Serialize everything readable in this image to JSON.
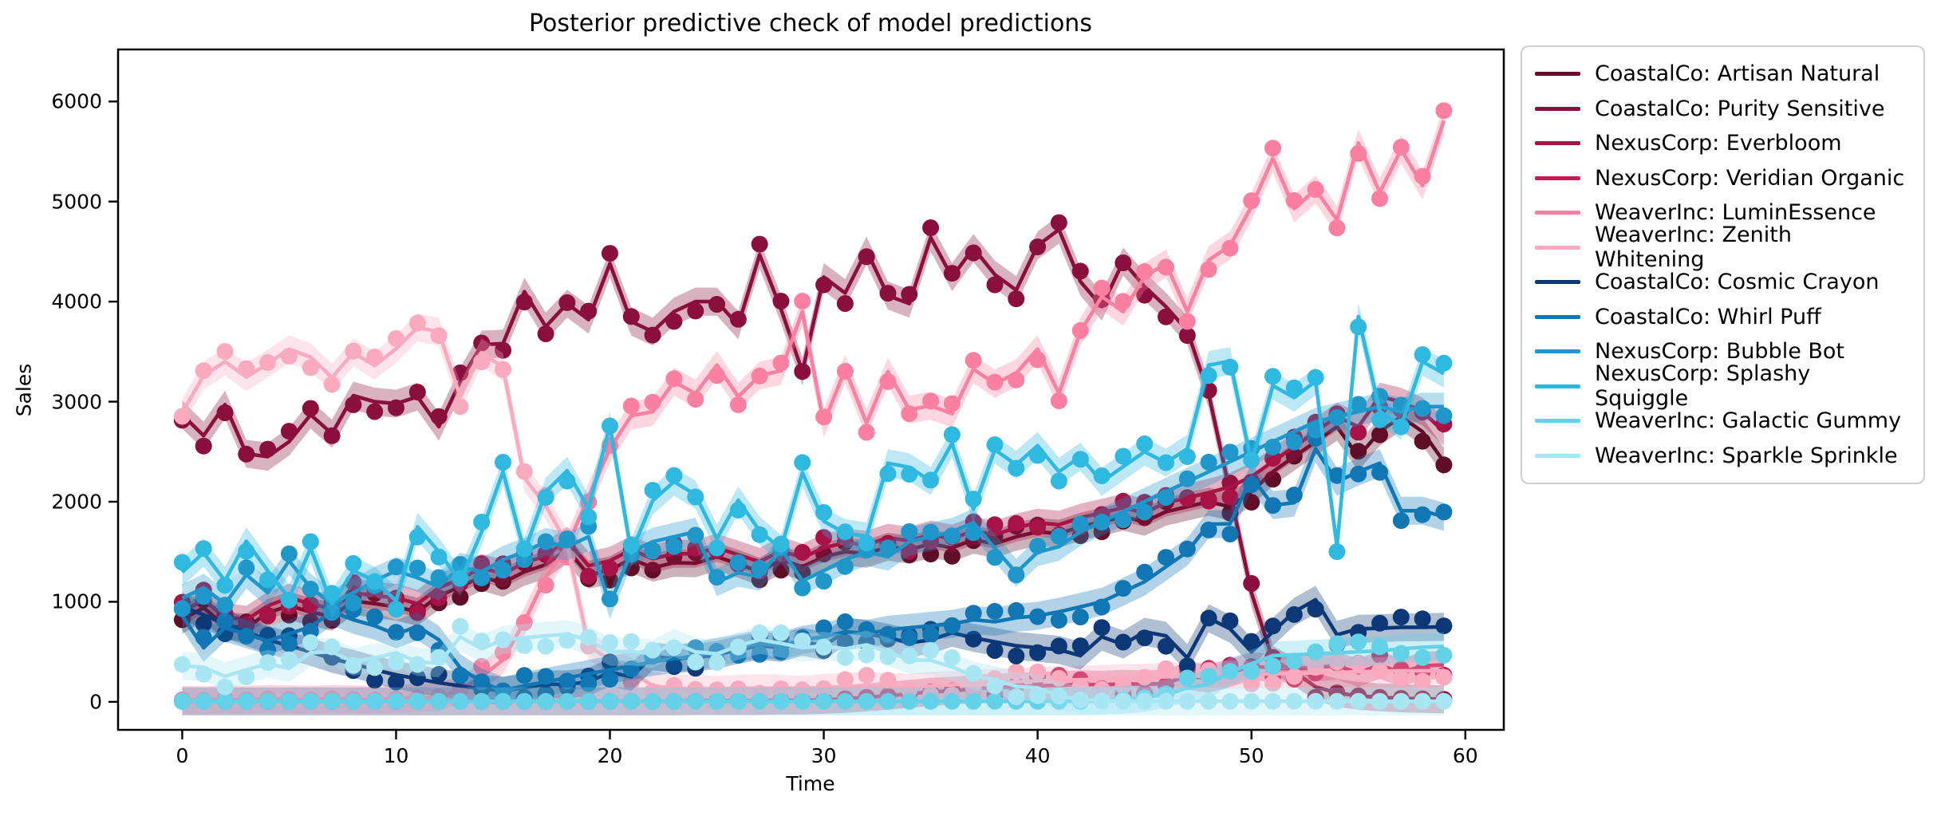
{
  "title": "Posterior predictive check of model predictions",
  "xlabel": "Time",
  "ylabel": "Sales",
  "axes": {
    "xticks": [
      0,
      10,
      20,
      30,
      40,
      50,
      60
    ],
    "yticks": [
      0,
      1000,
      2000,
      3000,
      4000,
      5000,
      6000
    ],
    "xlim": [
      -3,
      61.8
    ],
    "ylim": [
      -280,
      6520
    ],
    "grid": false,
    "spine_color": "#000000"
  },
  "legend": {
    "position": "outside-upper-right",
    "items": [
      {
        "label": "CoastalCo: Artisan Natural",
        "color": "#600e28"
      },
      {
        "label": "CoastalCo: Purity Sensitive",
        "color": "#8a0f3c"
      },
      {
        "label": "NexusCorp: Everbloom",
        "color": "#a81347"
      },
      {
        "label": "NexusCorp: Veridian Organic",
        "color": "#c41a55"
      },
      {
        "label": "WeaverInc: LuminEssence",
        "color": "#fa7fa0"
      },
      {
        "label": "WeaverInc: Zenith Whitening",
        "color": "#f9aabf"
      },
      {
        "label": "CoastalCo: Cosmic Crayon",
        "color": "#0c3877"
      },
      {
        "label": "CoastalCo: Whirl Puff",
        "color": "#1176b4"
      },
      {
        "label": "NexusCorp: Bubble Bot",
        "color": "#1f97cb"
      },
      {
        "label": "NexusCorp: Splashy Squiggle",
        "color": "#2fb9e0"
      },
      {
        "label": "WeaverInc: Galactic Gummy",
        "color": "#63d1e8"
      },
      {
        "label": "WeaverInc: Sparkle Sprinkle",
        "color": "#a9e6f3"
      }
    ]
  },
  "chart_data": {
    "type": "line",
    "title": "Posterior predictive check of model predictions",
    "xlabel": "Time",
    "ylabel": "Sales",
    "marker": "circle",
    "band_halfwidth": 140,
    "band_opacity": 0.32,
    "x": [
      0,
      1,
      2,
      3,
      4,
      5,
      6,
      7,
      8,
      9,
      10,
      11,
      12,
      13,
      14,
      15,
      16,
      17,
      18,
      19,
      20,
      21,
      22,
      23,
      24,
      25,
      26,
      27,
      28,
      29,
      30,
      31,
      32,
      33,
      34,
      35,
      36,
      37,
      38,
      39,
      40,
      41,
      42,
      43,
      44,
      45,
      46,
      47,
      48,
      49,
      50,
      51,
      52,
      53,
      54,
      55,
      56,
      57,
      58,
      59
    ],
    "series": [
      {
        "name": "CoastalCo: Artisan Natural",
        "color": "#600e28",
        "values": [
          820,
          940,
          760,
          740,
          890,
          960,
          900,
          850,
          1010,
          980,
          950,
          900,
          1060,
          1150,
          1250,
          1190,
          1300,
          1370,
          1525,
          1270,
          1315,
          1430,
          1340,
          1390,
          1385,
          1450,
          1380,
          1300,
          1420,
          1350,
          1450,
          1500,
          1480,
          1550,
          1520,
          1580,
          1540,
          1620,
          1580,
          1650,
          1700,
          1680,
          1750,
          1800,
          1850,
          1800,
          1900,
          1950,
          2000,
          1950,
          2100,
          2300,
          2450,
          2600,
          2750,
          2450,
          2700,
          2850,
          2700,
          2400
        ]
      },
      {
        "name": "CoastalCo: Purity Sensitive",
        "color": "#8a0f3c",
        "values": [
          2870,
          2660,
          2970,
          2480,
          2450,
          2600,
          2870,
          2680,
          3060,
          3000,
          2980,
          3050,
          2750,
          3200,
          3570,
          3580,
          4100,
          3750,
          3980,
          3820,
          4380,
          3800,
          3700,
          3900,
          4000,
          4000,
          3765,
          4470,
          3925,
          3300,
          4245,
          4085,
          4510,
          4060,
          3980,
          4640,
          4245,
          4535,
          4270,
          4115,
          4560,
          4720,
          4200,
          3950,
          4400,
          4150,
          3950,
          3710,
          3075,
          2090,
          1090,
          420,
          300,
          150,
          90,
          60,
          45,
          35,
          30,
          25
        ]
      },
      {
        "name": "NexusCorp: Everbloom",
        "color": "#a81347",
        "values": [
          900,
          1020,
          850,
          820,
          960,
          1040,
          980,
          930,
          1090,
          1060,
          1040,
          980,
          1140,
          1230,
          1340,
          1280,
          1390,
          1460,
          1610,
          1360,
          1410,
          1520,
          1430,
          1480,
          1480,
          1540,
          1470,
          1400,
          1510,
          1440,
          1540,
          1590,
          1570,
          1640,
          1610,
          1670,
          1630,
          1710,
          1670,
          1740,
          1790,
          1770,
          1840,
          1890,
          1940,
          1890,
          1990,
          2040,
          2090,
          2150,
          2250,
          2400,
          2550,
          2700,
          2850,
          2750,
          3050,
          3000,
          2900,
          2700
        ]
      },
      {
        "name": "NexusCorp: Veridian Organic",
        "color": "#c41a55",
        "values": [
          5,
          5,
          5,
          5,
          5,
          5,
          5,
          5,
          5,
          5,
          5,
          5,
          5,
          5,
          5,
          5,
          5,
          5,
          5,
          5,
          5,
          5,
          5,
          5,
          10,
          10,
          10,
          10,
          15,
          15,
          20,
          30,
          45,
          60,
          80,
          100,
          110,
          130,
          140,
          150,
          160,
          165,
          175,
          170,
          180,
          175,
          185,
          260,
          230,
          290,
          355,
          340,
          330,
          345,
          360,
          290,
          370,
          290,
          360,
          370
        ]
      },
      {
        "name": "WeaverInc: LuminEssence",
        "color": "#fa7fa0",
        "values": [
          20,
          15,
          25,
          20,
          30,
          25,
          20,
          30,
          25,
          20,
          30,
          40,
          50,
          120,
          250,
          420,
          800,
          1250,
          1550,
          2050,
          2530,
          2860,
          2900,
          3200,
          3080,
          3365,
          3050,
          3260,
          3310,
          3900,
          2785,
          3325,
          2785,
          3300,
          2920,
          2960,
          2880,
          3325,
          3180,
          3285,
          3525,
          3080,
          3700,
          4050,
          3900,
          4250,
          4380,
          3900,
          4415,
          4560,
          4950,
          5430,
          4930,
          5120,
          4815,
          5585,
          5090,
          5520,
          5160,
          5810
        ]
      },
      {
        "name": "WeaverInc: Zenith Whitening",
        "color": "#f9aabf",
        "values": [
          2890,
          3260,
          3400,
          3245,
          3380,
          3525,
          3445,
          3240,
          3490,
          3360,
          3530,
          3740,
          3700,
          3050,
          3490,
          3345,
          2240,
          1960,
          1575,
          560,
          420,
          300,
          160,
          135,
          125,
          120,
          130,
          140,
          130,
          120,
          140,
          150,
          160,
          150,
          140,
          160,
          170,
          180,
          190,
          200,
          210,
          215,
          220,
          230,
          235,
          240,
          250,
          255,
          260,
          270,
          275,
          280,
          285,
          290,
          295,
          300,
          305,
          310,
          310,
          310
        ]
      },
      {
        "name": "CoastalCo: Cosmic Crayon",
        "color": "#0c3877",
        "values": [
          950,
          870,
          780,
          700,
          620,
          560,
          500,
          430,
          380,
          320,
          270,
          230,
          190,
          160,
          130,
          110,
          140,
          175,
          175,
          200,
          295,
          250,
          455,
          430,
          440,
          470,
          520,
          560,
          540,
          600,
          560,
          700,
          680,
          640,
          590,
          620,
          690,
          640,
          600,
          560,
          540,
          520,
          462,
          650,
          573,
          700,
          660,
          438,
          835,
          730,
          500,
          700,
          900,
          1020,
          670,
          730,
          735,
          745,
          745,
          750
        ]
      },
      {
        "name": "CoastalCo: Whirl Puff",
        "color": "#1176b4",
        "values": [
          860,
          540,
          740,
          675,
          610,
          680,
          750,
          900,
          820,
          760,
          675,
          755,
          620,
          340,
          195,
          110,
          160,
          200,
          240,
          280,
          320,
          360,
          400,
          430,
          460,
          500,
          540,
          580,
          560,
          620,
          650,
          700,
          680,
          720,
          740,
          760,
          780,
          820,
          800,
          840,
          860,
          900,
          950,
          1000,
          1100,
          1200,
          1350,
          1500,
          1775,
          1780,
          2250,
          1965,
          1990,
          2530,
          2200,
          2300,
          2385,
          1910,
          1910,
          1850
        ]
      },
      {
        "name": "NexusCorp: Bubble Bot",
        "color": "#1f97cb",
        "values": [
          1035,
          1140,
          980,
          1270,
          1090,
          1410,
          1140,
          980,
          1090,
          1210,
          1310,
          1240,
          1150,
          1350,
          1300,
          1420,
          1500,
          1600,
          1550,
          1650,
          970,
          1500,
          1600,
          1650,
          1700,
          1195,
          1290,
          1250,
          1530,
          1210,
          1310,
          1420,
          1500,
          1450,
          1600,
          1650,
          1700,
          1790,
          1535,
          1290,
          1495,
          1550,
          1700,
          1800,
          1900,
          2000,
          2100,
          2200,
          2300,
          2400,
          2500,
          2600,
          2700,
          2800,
          2850,
          2900,
          2950,
          2900,
          2950,
          2950
        ]
      },
      {
        "name": "NexusCorp: Splashy Squiggle",
        "color": "#2fb9e0",
        "values": [
          1295,
          1490,
          1210,
          1605,
          1310,
          1035,
          1535,
          980,
          1310,
          1210,
          1010,
          1750,
          1500,
          1200,
          1700,
          2300,
          1500,
          2100,
          2310,
          1930,
          2760,
          1490,
          2010,
          2200,
          2070,
          1630,
          2015,
          1710,
          1530,
          2290,
          1805,
          1685,
          1655,
          2385,
          2345,
          2205,
          2585,
          1925,
          2520,
          2370,
          2560,
          2300,
          2450,
          2200,
          2350,
          2500,
          2390,
          2530,
          3365,
          3405,
          2390,
          3160,
          3040,
          3205,
          1550,
          3850,
          2905,
          2760,
          3400,
          3280
        ]
      },
      {
        "name": "WeaverInc: Galactic Gummy",
        "color": "#63d1e8",
        "values": [
          5,
          5,
          5,
          5,
          5,
          5,
          5,
          5,
          5,
          5,
          5,
          5,
          5,
          5,
          5,
          5,
          5,
          5,
          5,
          5,
          5,
          5,
          5,
          5,
          5,
          5,
          5,
          5,
          5,
          5,
          5,
          5,
          5,
          5,
          5,
          5,
          5,
          5,
          5,
          5,
          5,
          5,
          5,
          10,
          20,
          40,
          80,
          135,
          175,
          300,
          380,
          462,
          470,
          480,
          490,
          500,
          510,
          530,
          545,
          555
        ]
      },
      {
        "name": "WeaverInc: Sparkle Sprinkle",
        "color": "#a9e6f3",
        "values": [
          360,
          345,
          255,
          320,
          380,
          335,
          490,
          500,
          400,
          440,
          490,
          400,
          385,
          650,
          530,
          620,
          640,
          660,
          675,
          620,
          500,
          505,
          480,
          590,
          500,
          480,
          560,
          620,
          585,
          540,
          560,
          530,
          570,
          500,
          420,
          415,
          350,
          260,
          220,
          155,
          140,
          60,
          20,
          10,
          5,
          5,
          5,
          5,
          5,
          5,
          5,
          5,
          5,
          5,
          5,
          5,
          5,
          5,
          5,
          5
        ]
      }
    ]
  }
}
